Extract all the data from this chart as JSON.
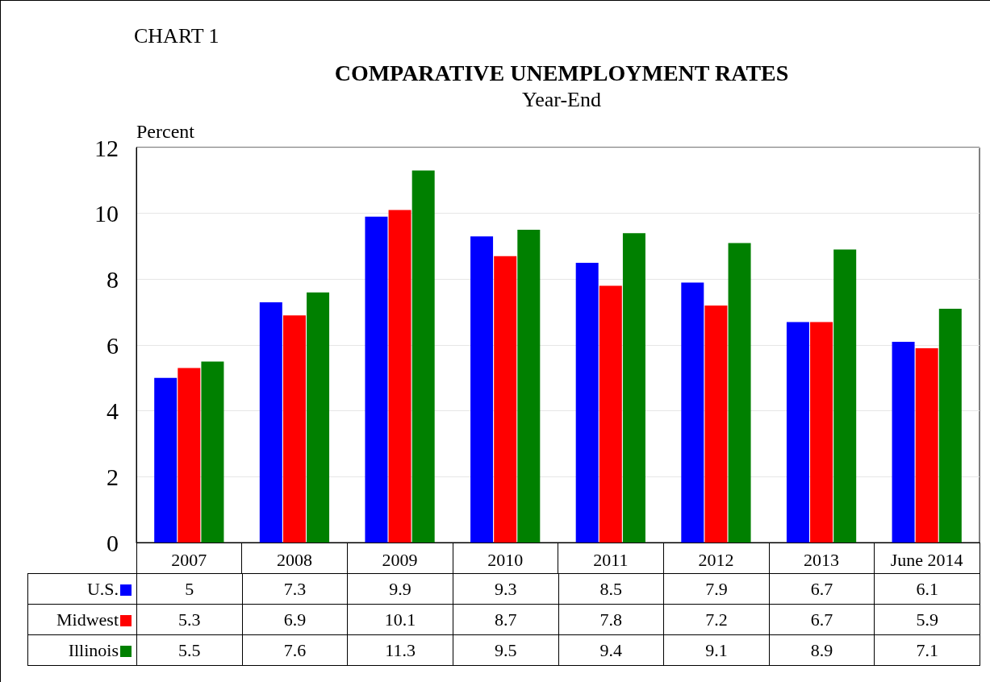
{
  "chart_data": {
    "type": "bar",
    "title": "COMPARATIVE UNEMPLOYMENT RATES",
    "subtitle": "Year-End",
    "ylabel": "Percent",
    "annotations": [
      "CHART 1"
    ],
    "categories": [
      "2007",
      "2008",
      "2009",
      "2010",
      "2011",
      "2012",
      "2013",
      "June 2014"
    ],
    "series": [
      {
        "name": "U.S.",
        "color": "#0000ff",
        "values": [
          5,
          7.3,
          9.9,
          9.3,
          8.5,
          7.9,
          6.7,
          6.1
        ]
      },
      {
        "name": "Midwest",
        "color": "#ff0000",
        "values": [
          5.3,
          6.9,
          10.1,
          8.7,
          7.8,
          7.2,
          6.7,
          5.9
        ]
      },
      {
        "name": "Illinois",
        "color": "#008000",
        "values": [
          5.5,
          7.6,
          11.3,
          9.5,
          9.4,
          9.1,
          8.9,
          7.1
        ]
      }
    ],
    "ylim": [
      0,
      12
    ],
    "yticks": [
      0,
      2,
      4,
      6,
      8,
      10,
      12
    ],
    "grid": "y",
    "legend": "bottom",
    "data_labels": true
  }
}
